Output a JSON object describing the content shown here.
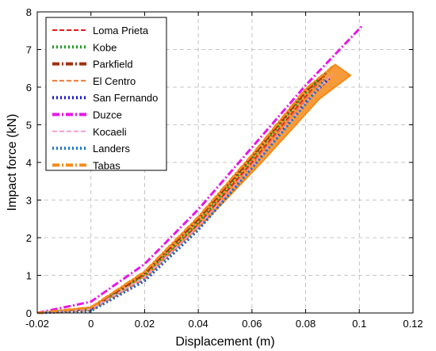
{
  "chart_data": {
    "type": "line",
    "xlabel": "Displacement (m)",
    "ylabel": "Impact force (kN)",
    "xlim": [
      -0.02,
      0.12
    ],
    "ylim": [
      0,
      8
    ],
    "xticks": [
      "-0.02",
      "0",
      "0.02",
      "0.04",
      "0.06",
      "0.08",
      "0.1",
      "0.12"
    ],
    "yticks": [
      "0",
      "1",
      "2",
      "3",
      "4",
      "5",
      "6",
      "7",
      "8"
    ],
    "grid": true,
    "legend_position": "top-left",
    "series": [
      {
        "name": "Loma Prieta",
        "color": "#e31a1c",
        "dash": "dashed",
        "x": [
          -0.02,
          0,
          0.02,
          0.04,
          0.06,
          0.08,
          0.087
        ],
        "y": [
          0,
          0.08,
          0.95,
          2.35,
          4.0,
          5.75,
          6.3
        ]
      },
      {
        "name": "Kobe",
        "color": "#1e9e1e",
        "dash": "dotted",
        "x": [
          -0.02,
          0,
          0.02,
          0.04,
          0.06,
          0.08,
          0.09
        ],
        "y": [
          0,
          0.1,
          1.0,
          2.4,
          4.1,
          5.85,
          6.55
        ]
      },
      {
        "name": "Parkfield",
        "color": "#a0300c",
        "dash": "dashdot",
        "x": [
          -0.02,
          0,
          0.02,
          0.04,
          0.06,
          0.08,
          0.088
        ],
        "y": [
          0,
          0.12,
          1.05,
          2.5,
          4.15,
          5.9,
          6.4
        ]
      },
      {
        "name": "El Centro",
        "color": "#f07a3a",
        "dash": "dashed",
        "x": [
          -0.02,
          0,
          0.02,
          0.04,
          0.06,
          0.08,
          0.086
        ],
        "y": [
          0,
          0.06,
          0.9,
          2.3,
          3.95,
          5.7,
          6.2
        ]
      },
      {
        "name": "San Fernando",
        "color": "#1a1acc",
        "dash": "dotted",
        "x": [
          -0.02,
          0,
          0.02,
          0.04,
          0.06,
          0.08,
          0.089
        ],
        "y": [
          0,
          0.05,
          0.85,
          2.2,
          3.85,
          5.6,
          6.25
        ]
      },
      {
        "name": "Duzce",
        "color": "#e617e6",
        "dash": "dashdot",
        "x": [
          -0.02,
          0,
          0.02,
          0.04,
          0.06,
          0.08,
          0.1,
          0.101
        ],
        "y": [
          0,
          0.3,
          1.3,
          2.75,
          4.4,
          6.05,
          7.55,
          7.62
        ]
      },
      {
        "name": "Kocaeli",
        "color": "#f59ccf",
        "dash": "dashed",
        "x": [
          -0.02,
          0,
          0.02,
          0.04,
          0.06,
          0.08,
          0.09
        ],
        "y": [
          0,
          0.1,
          0.95,
          2.3,
          3.9,
          5.6,
          6.35
        ]
      },
      {
        "name": "Landers",
        "color": "#1a78c2",
        "dash": "dotted",
        "x": [
          -0.02,
          0,
          0.02,
          0.04,
          0.06,
          0.08,
          0.087
        ],
        "y": [
          0,
          0.05,
          0.88,
          2.22,
          3.85,
          5.55,
          6.2
        ]
      },
      {
        "name": "Tabas",
        "color": "#f58a1a",
        "dash": "dashdot",
        "x": [
          -0.02,
          0,
          0.02,
          0.04,
          0.06,
          0.08,
          0.091
        ],
        "y": [
          0,
          0.15,
          1.1,
          2.55,
          4.2,
          5.95,
          6.6
        ]
      }
    ]
  }
}
